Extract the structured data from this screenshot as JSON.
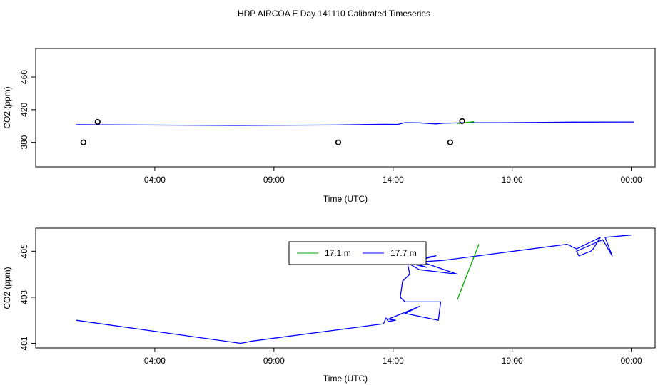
{
  "chart_data": [
    {
      "type": "line",
      "title": "HDP AIRCOA E  Day 141110  Calibrated Timeseries",
      "xlabel": "Time (UTC)",
      "ylabel": "CO2 (ppm)",
      "x_unit": "hours since 00:00 UTC on day 141110",
      "xlim": [
        -1.0,
        25.0
      ],
      "ylim": [
        350,
        495
      ],
      "x_ticks": [
        {
          "value": 4,
          "label": "04:00"
        },
        {
          "value": 9,
          "label": "09:00"
        },
        {
          "value": 14,
          "label": "14:00"
        },
        {
          "value": 19,
          "label": "19:00"
        },
        {
          "value": 24,
          "label": "00:00"
        }
      ],
      "y_ticks": [
        {
          "value": 380,
          "label": "380"
        },
        {
          "value": 420,
          "label": "420"
        },
        {
          "value": 460,
          "label": "460"
        }
      ],
      "grid": false,
      "series": [
        {
          "name": "17.7 m",
          "color": "#0000ff",
          "style": "line",
          "points": [
            [
              0.7,
              401.6
            ],
            [
              7.4,
              400.7
            ],
            [
              11.5,
              401.2
            ],
            [
              13.6,
              402.1
            ],
            [
              14.2,
              402.0
            ],
            [
              14.5,
              404.2
            ],
            [
              15.1,
              403.9
            ],
            [
              15.8,
              402.6
            ],
            [
              16.1,
              403.5
            ],
            [
              17.0,
              404.0
            ],
            [
              18.5,
              404.1
            ],
            [
              21.5,
              404.8
            ],
            [
              24.1,
              404.9
            ]
          ]
        },
        {
          "name": "17.1 m",
          "color": "#00aa00",
          "style": "line",
          "points": [
            [
              16.7,
              402.9
            ],
            [
              17.4,
              405.3
            ]
          ]
        },
        {
          "name": "",
          "color": "#000000",
          "style": "circles",
          "points": [
            [
              1.0,
              380
            ],
            [
              1.6,
              405
            ],
            [
              11.7,
              380
            ],
            [
              16.4,
              380
            ],
            [
              16.9,
              406
            ]
          ]
        }
      ]
    },
    {
      "type": "line",
      "xlabel": "Time (UTC)",
      "ylabel": "CO2 (ppm)",
      "x_unit": "hours since 00:00 UTC on day 141110",
      "xlim": [
        -1.0,
        25.0
      ],
      "ylim": [
        400.8,
        406.0
      ],
      "x_ticks": [
        {
          "value": 4,
          "label": "04:00"
        },
        {
          "value": 9,
          "label": "09:00"
        },
        {
          "value": 14,
          "label": "14:00"
        },
        {
          "value": 19,
          "label": "19:00"
        },
        {
          "value": 24,
          "label": "00:00"
        }
      ],
      "y_ticks": [
        {
          "value": 401,
          "label": "401"
        },
        {
          "value": 403,
          "label": "403"
        },
        {
          "value": 405,
          "label": "405"
        }
      ],
      "legend": {
        "position": "top-center",
        "entries": [
          {
            "name": "17.1 m",
            "color": "#00aa00"
          },
          {
            "name": "17.7 m",
            "color": "#0000ff"
          }
        ]
      },
      "grid": false,
      "series": [
        {
          "name": "17.7 m",
          "color": "#0000ff",
          "style": "line",
          "points": [
            [
              0.7,
              402.0
            ],
            [
              7.6,
              401.0
            ],
            [
              8.1,
              401.1
            ],
            [
              13.6,
              401.85
            ],
            [
              13.7,
              402.1
            ],
            [
              13.8,
              401.95
            ],
            [
              14.1,
              402.0
            ],
            [
              13.8,
              402.05
            ],
            [
              15.1,
              402.6
            ],
            [
              14.5,
              402.3
            ],
            [
              15.9,
              402.0
            ],
            [
              16.0,
              402.8
            ],
            [
              14.5,
              402.8
            ],
            [
              14.3,
              403.0
            ],
            [
              14.4,
              403.7
            ],
            [
              14.7,
              404.0
            ],
            [
              14.6,
              404.5
            ],
            [
              15.4,
              404.3
            ],
            [
              14.6,
              404.6
            ],
            [
              15.8,
              404.8
            ],
            [
              14.7,
              404.5
            ],
            [
              15.3,
              404.5
            ],
            [
              16.7,
              404.0
            ],
            [
              15.1,
              404.2
            ],
            [
              14.6,
              404.5
            ],
            [
              16.1,
              404.6
            ],
            [
              21.3,
              405.3
            ],
            [
              21.7,
              405.1
            ],
            [
              22.1,
              405.3
            ],
            [
              22.7,
              405.6
            ],
            [
              22.4,
              405.1
            ],
            [
              22.3,
              405.0
            ],
            [
              21.8,
              404.8
            ],
            [
              21.7,
              405.0
            ],
            [
              22.8,
              405.5
            ],
            [
              23.2,
              404.8
            ],
            [
              22.9,
              405.6
            ],
            [
              24.0,
              405.7
            ]
          ]
        },
        {
          "name": "17.1 m",
          "color": "#00aa00",
          "style": "line",
          "points": [
            [
              16.7,
              402.9
            ],
            [
              17.6,
              405.3
            ]
          ]
        }
      ]
    }
  ]
}
